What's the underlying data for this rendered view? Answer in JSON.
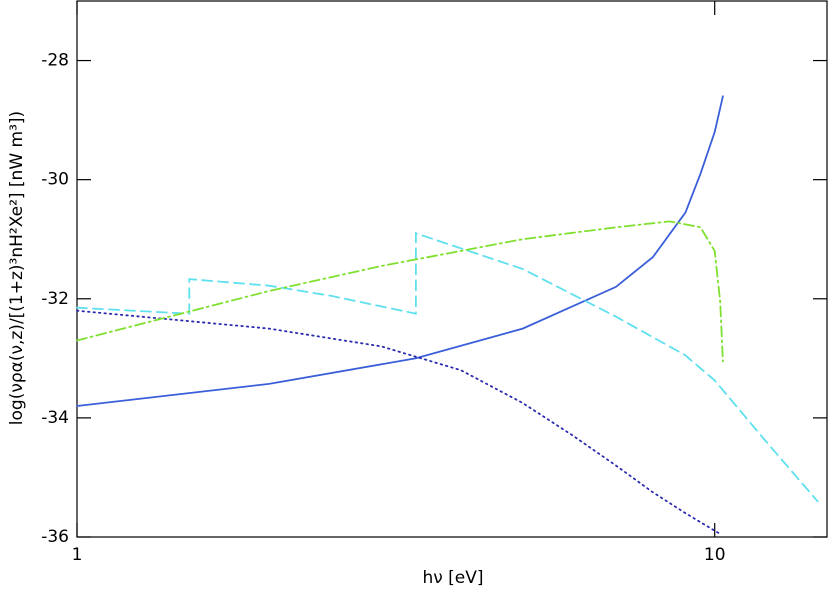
{
  "chart_data": {
    "type": "line",
    "xlabel": "hν [eV]",
    "ylabel": "log(νρα(ν,z)/[(1+z)³nH²Xe²] [nW m³])",
    "xlog": true,
    "xlim": [
      1,
      15
    ],
    "ylim": [
      -36,
      -27
    ],
    "xticks": [
      1,
      10
    ],
    "yticks": [
      -36,
      -34,
      -32,
      -30,
      -28
    ],
    "series": [
      {
        "color": "#3a5fd9",
        "dash": "solid",
        "x": [
          1,
          2,
          3.4,
          5,
          7,
          8,
          9,
          9.5,
          10,
          10.3
        ],
        "values": [
          -33.8,
          -33.43,
          -33.0,
          -32.5,
          -31.8,
          -31.3,
          -30.55,
          -29.9,
          -29.2,
          -28.6
        ]
      },
      {
        "color": "#2b2bb0",
        "dash": "dotted",
        "x": [
          1,
          2,
          3,
          4,
          5,
          6,
          7,
          8,
          9,
          10.2
        ],
        "values": [
          -32.2,
          -32.5,
          -32.8,
          -33.2,
          -33.75,
          -34.3,
          -34.8,
          -35.25,
          -35.6,
          -35.95
        ]
      },
      {
        "color": "#5fe0ee",
        "dash": "dashed",
        "x": [
          1,
          1.5,
          1.5,
          2,
          2.5,
          3.4,
          3.4,
          5,
          7,
          9,
          10,
          12,
          14.5
        ],
        "values": [
          -32.15,
          -32.25,
          -31.67,
          -31.78,
          -31.95,
          -32.25,
          -30.9,
          -31.5,
          -32.3,
          -32.95,
          -33.37,
          -34.38,
          -35.4
        ]
      },
      {
        "color": "#7fe030",
        "dash": "dashdot",
        "x": [
          1,
          2,
          3,
          5,
          7,
          8.5,
          9.5,
          10,
          10.2,
          10.3
        ],
        "values": [
          -32.7,
          -31.87,
          -31.45,
          -31.0,
          -30.8,
          -30.7,
          -30.8,
          -31.2,
          -32.05,
          -33.05
        ]
      }
    ]
  }
}
